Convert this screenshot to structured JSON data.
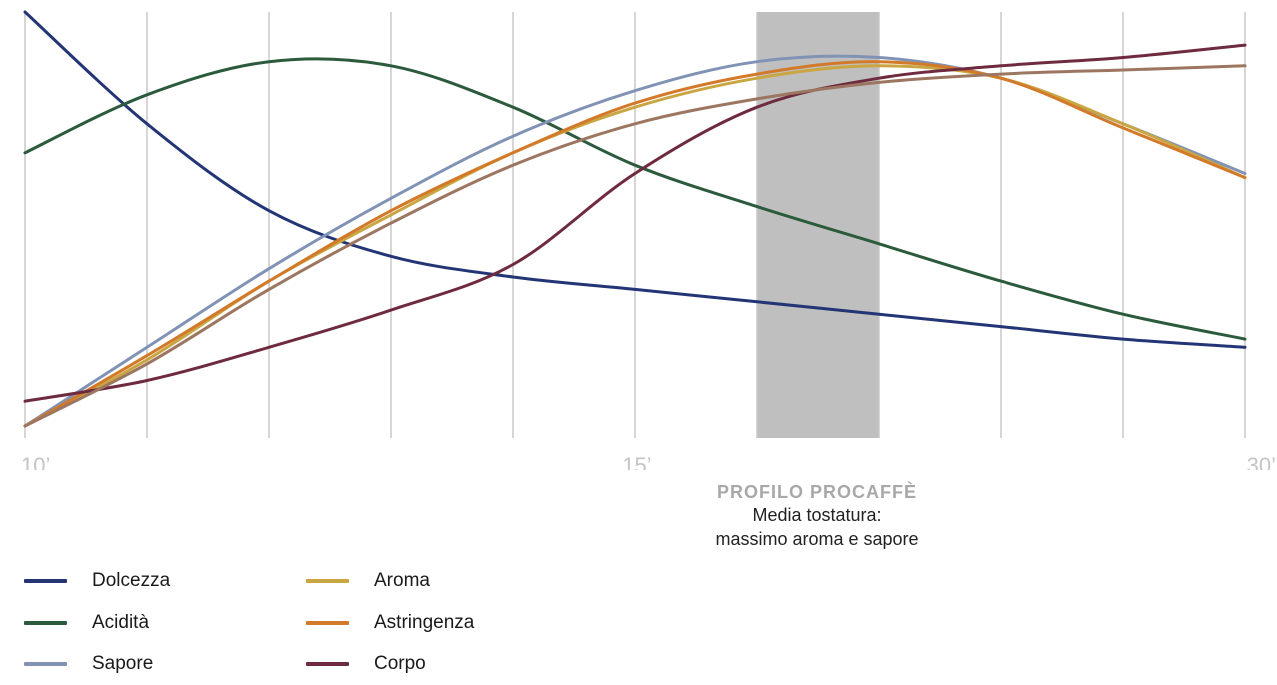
{
  "chart_data": {
    "type": "line",
    "xlabel": "",
    "ylabel": "",
    "x_tick_labels": [
      "10’",
      "15’",
      "30’"
    ],
    "x_positions": [
      0,
      1,
      2,
      3,
      4,
      5,
      6,
      7,
      8,
      9,
      10
    ],
    "ylim": [
      0,
      100
    ],
    "grid": "vertical",
    "highlight_band": {
      "x_range": [
        6,
        7
      ],
      "color": "#bfbfbf",
      "title": "PROFILO PROCAFFÈ",
      "lines": [
        "Media tostatura:",
        "massimo aroma e sapore"
      ]
    },
    "series": [
      {
        "name": "Dolcezza",
        "color": "#233575",
        "x": [
          0,
          1,
          2,
          3,
          4,
          5,
          6,
          7,
          8,
          9,
          10
        ],
        "values": [
          100,
          73,
          52,
          41,
          36,
          33,
          30,
          27,
          24,
          21,
          19
        ]
      },
      {
        "name": "Acidità",
        "color": "#2c5a3c",
        "x": [
          0,
          1,
          2,
          3,
          4,
          5,
          6,
          7,
          8,
          9,
          10
        ],
        "values": [
          66,
          80,
          88,
          87,
          77,
          63,
          53,
          44,
          35,
          27,
          21
        ]
      },
      {
        "name": "Sapore",
        "color": "#8193b5",
        "x": [
          0,
          1,
          2,
          3,
          4,
          5,
          6,
          7,
          8,
          9,
          10
        ],
        "values": [
          0,
          19,
          38,
          55,
          70,
          81,
          88,
          89,
          84,
          73,
          61
        ]
      },
      {
        "name": "Aroma",
        "color": "#c9a642",
        "x": [
          0,
          1,
          2,
          3,
          4,
          5,
          6,
          7,
          8,
          9,
          10
        ],
        "values": [
          0,
          16,
          35,
          51,
          66,
          77,
          84,
          87,
          84,
          73,
          60
        ]
      },
      {
        "name": "Astringenza",
        "color": "#d37a2a",
        "x": [
          0,
          1,
          2,
          3,
          4,
          5,
          6,
          7,
          8,
          9,
          10
        ],
        "values": [
          0,
          17,
          35,
          52,
          66,
          78,
          85,
          88,
          84,
          72,
          60
        ]
      },
      {
        "name": "Corpo",
        "color": "#6e2a3e",
        "x": [
          0,
          1,
          2,
          3,
          4,
          5,
          6,
          7,
          8,
          9,
          10
        ],
        "values": [
          6,
          11,
          19,
          28,
          39,
          61,
          77,
          84,
          87,
          89,
          92
        ]
      },
      {
        "name": "",
        "color": "#9c7660",
        "x": [
          0,
          1,
          2,
          3,
          4,
          5,
          6,
          7,
          8,
          9,
          10
        ],
        "values": [
          0,
          15,
          33,
          49,
          63,
          73,
          79,
          83,
          85,
          86,
          87
        ]
      }
    ]
  },
  "legend": {
    "items": [
      {
        "label": "Dolcezza",
        "color": "#233575"
      },
      {
        "label": "Acidità",
        "color": "#2c5a3c"
      },
      {
        "label": "Sapore",
        "color": "#8193b5"
      },
      {
        "label": "Aroma",
        "color": "#c9a642"
      },
      {
        "label": "Astringenza",
        "color": "#d37a2a"
      },
      {
        "label": "Corpo",
        "color": "#6e2a3e"
      }
    ]
  },
  "colors": {
    "grid": "#c8c8c8",
    "tick_label": "#c4c4c4",
    "band": "#bfbfbf",
    "annotation_title": "#a8a8a8"
  }
}
